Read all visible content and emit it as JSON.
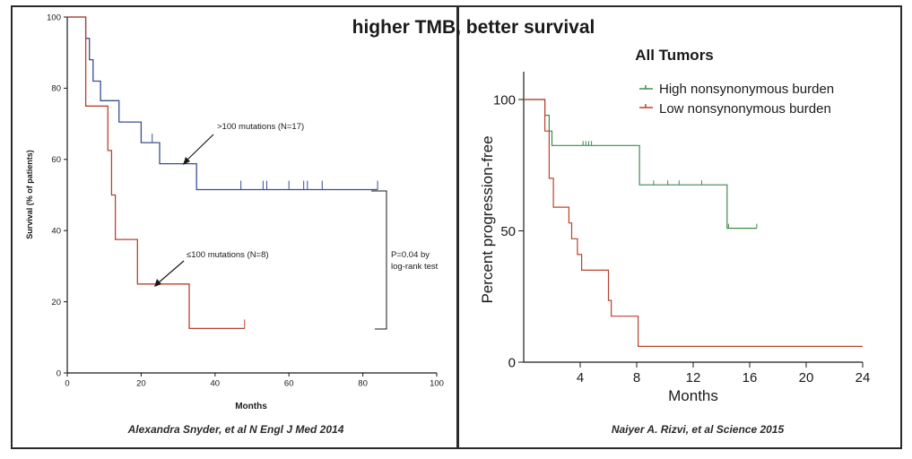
{
  "title": "higher TMB, better survival",
  "chart_data": [
    {
      "type": "line",
      "chart_style": "kaplan-meier",
      "title": "",
      "xlabel": "Months",
      "ylabel": "Survival (% of patients)",
      "xlim": [
        0,
        100
      ],
      "ylim": [
        0,
        100
      ],
      "xticks": [
        0,
        20,
        40,
        60,
        80,
        100
      ],
      "yticks": [
        0,
        20,
        40,
        60,
        80,
        100
      ],
      "series": [
        {
          "name": ">100 mutations (N=17)",
          "color": "#3b4f8f",
          "x": [
            0,
            5,
            5,
            6,
            6,
            7,
            7,
            9,
            9,
            14,
            14,
            20,
            20,
            25,
            25,
            35,
            35,
            84
          ],
          "y": [
            100,
            100,
            94,
            94,
            88,
            88,
            82,
            82,
            76.5,
            76.5,
            70.5,
            70.5,
            64.7,
            64.7,
            58.8,
            58.8,
            51.5,
            51.5
          ],
          "censor_x": [
            23,
            47,
            53,
            54,
            60,
            64,
            65,
            69,
            84
          ]
        },
        {
          "name": "≤100 mutations (N=8)",
          "color": "#b8432e",
          "x": [
            0,
            5,
            5,
            11,
            11,
            12,
            12,
            13,
            13,
            19,
            19,
            33,
            33,
            48
          ],
          "y": [
            100,
            100,
            75,
            75,
            62.5,
            62.5,
            50,
            50,
            37.5,
            37.5,
            25,
            25,
            12.5,
            12.5
          ],
          "censor_x": [
            48
          ]
        }
      ],
      "annotations": {
        "high_label": ">100 mutations (N=17)",
        "low_label": "≤100 mutations (N=8)",
        "pvalue_line1": "P=0.04 by",
        "pvalue_line2": "log-rank test"
      },
      "citation": "Alexandra Snyder, et al N Engl J Med 2014"
    },
    {
      "type": "line",
      "chart_style": "kaplan-meier",
      "title": "All Tumors",
      "xlabel": "Months",
      "ylabel": "Percent progression-free",
      "xlim": [
        0,
        24
      ],
      "ylim": [
        0,
        100
      ],
      "xticks": [
        4,
        8,
        12,
        16,
        20,
        24
      ],
      "yticks": [
        0,
        50,
        100
      ],
      "legend_position": "top-right",
      "series": [
        {
          "name": "High nonsynonymous burden",
          "color": "#3f8a4f",
          "x": [
            0,
            1.5,
            1.5,
            1.8,
            1.8,
            2.0,
            2.0,
            8.2,
            8.2,
            14.4,
            14.4,
            16.5
          ],
          "y": [
            100,
            100,
            94,
            94,
            88,
            88,
            82.5,
            82.5,
            67.5,
            67.5,
            51,
            51
          ],
          "censor_x": [
            4.2,
            4.4,
            4.6,
            4.8,
            9.2,
            10.2,
            11.0,
            12.6,
            14.5,
            16.5
          ]
        },
        {
          "name": "Low nonsynonymous burden",
          "color": "#b8432e",
          "x": [
            0,
            1.5,
            1.5,
            1.8,
            1.8,
            2.1,
            2.1,
            3.2,
            3.2,
            3.4,
            3.4,
            3.8,
            3.8,
            4.1,
            4.1,
            6.0,
            6.0,
            6.2,
            6.2,
            8.1,
            8.1,
            24
          ],
          "y": [
            100,
            100,
            88,
            88,
            70,
            70,
            59,
            59,
            53,
            53,
            47,
            47,
            41,
            41,
            35,
            35,
            23.5,
            23.5,
            17.5,
            17.5,
            6,
            6
          ],
          "censor_x": []
        }
      ],
      "citation": "Naiyer A. Rizvi, et al Science 2015"
    }
  ]
}
